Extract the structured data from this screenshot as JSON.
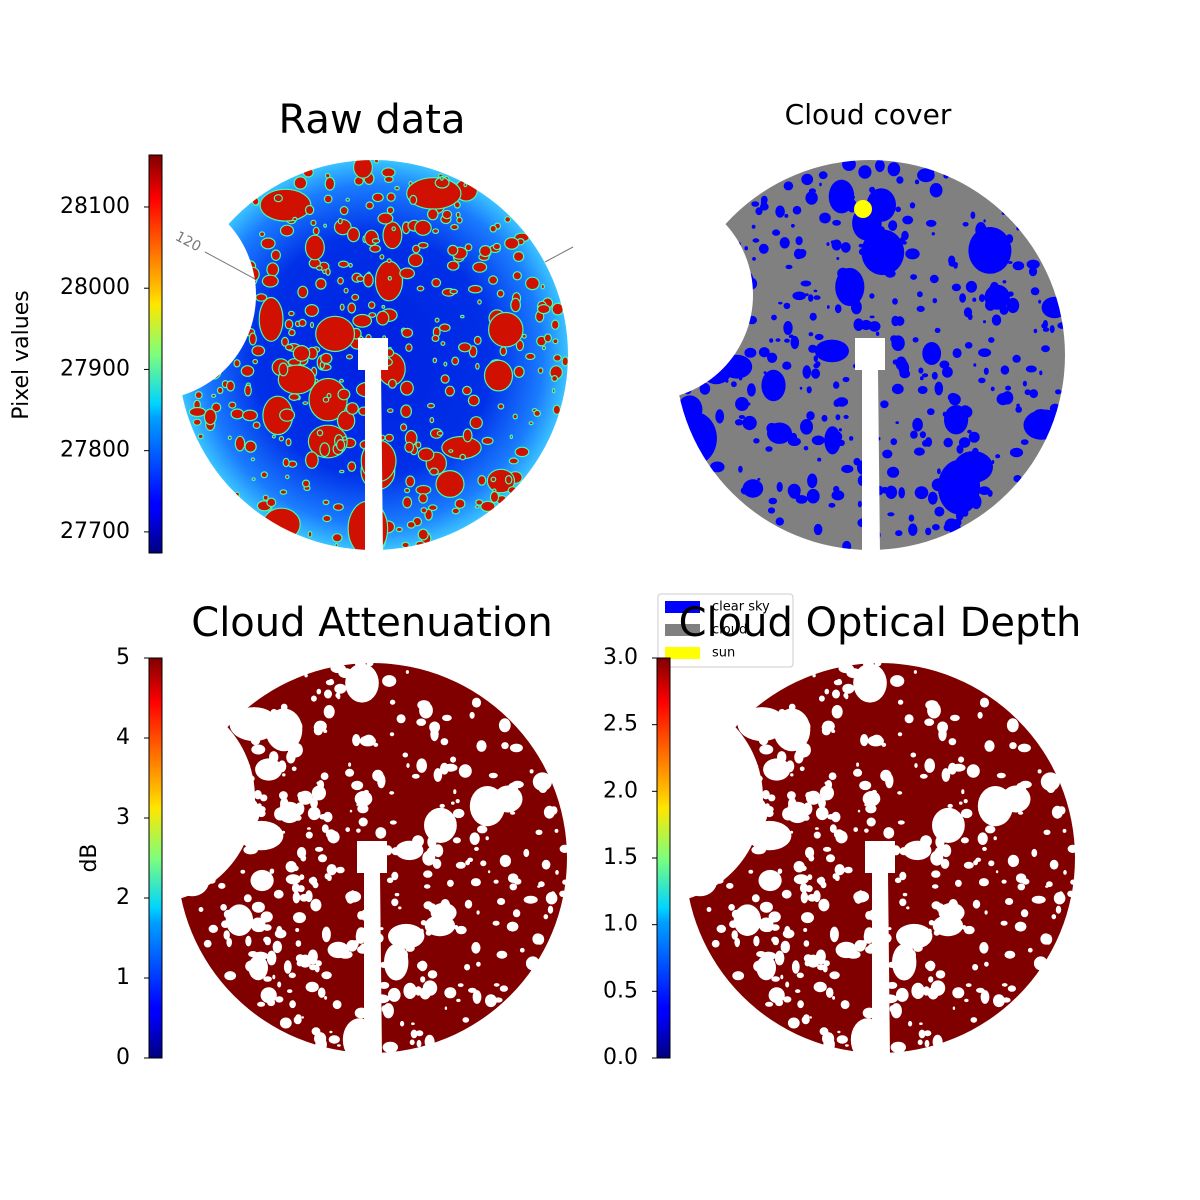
{
  "chart_data": [
    {
      "type": "image",
      "title": "Raw data",
      "ylabel": "Pixel values",
      "colormap": "jet",
      "ylim": [
        27674,
        28164
      ],
      "yticks": [
        27700,
        27800,
        27900,
        28000,
        28100
      ],
      "annotations": [
        "120"
      ]
    },
    {
      "type": "image",
      "title": "Cloud cover",
      "legend": [
        {
          "name": "clear sky",
          "color": "#0000ff"
        },
        {
          "name": "cloud",
          "color": "#808080"
        },
        {
          "name": "sun",
          "color": "#ffff00"
        }
      ]
    },
    {
      "type": "image",
      "title": "Cloud Attenuation",
      "ylabel": "dB",
      "colormap": "jet",
      "ylim": [
        0,
        5
      ],
      "yticks": [
        0,
        1,
        2,
        3,
        4,
        5
      ]
    },
    {
      "type": "image",
      "title": "Cloud Optical Depth",
      "colormap": "jet",
      "ylim": [
        0,
        3
      ],
      "yticks": [
        {
          "value": 0,
          "label": "0.0"
        },
        {
          "value": 0.5,
          "label": "0.5"
        },
        {
          "value": 1,
          "label": "1.0"
        },
        {
          "value": 1.5,
          "label": "1.5"
        },
        {
          "value": 2,
          "label": "2.0"
        },
        {
          "value": 2.5,
          "label": "2.5"
        },
        {
          "value": 3,
          "label": "3.0"
        }
      ]
    }
  ]
}
